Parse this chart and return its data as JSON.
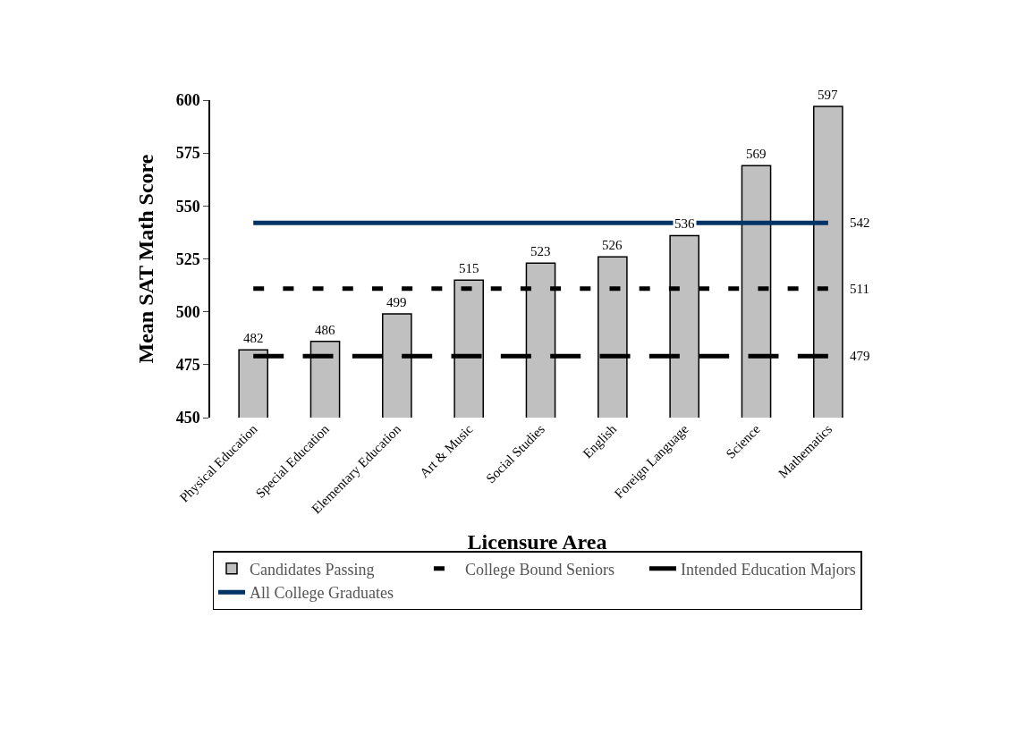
{
  "chart_data": {
    "type": "bar",
    "xlabel": "Licensure Area",
    "ylabel": "Mean SAT Math Score",
    "categories": [
      "Physical Education",
      "Special Education",
      "Elementary Education",
      "Art & Music",
      "Social Studies",
      "English",
      "Foreign Language",
      "Science",
      "Mathematics"
    ],
    "series": [
      {
        "name": "Candidates Passing",
        "color": "#c0c0c0",
        "values": [
          482,
          486,
          499,
          515,
          523,
          526,
          536,
          569,
          597
        ],
        "data_labels": true
      },
      {
        "name": "College Bound Seniors",
        "type": "line",
        "color": "#000000",
        "line_style": "dashed",
        "values": [
          511,
          511,
          511,
          511,
          511,
          511,
          511,
          511,
          511
        ],
        "value_labels": [
          null,
          null,
          null,
          null,
          null,
          null,
          null,
          null,
          "511"
        ]
      },
      {
        "name": "Intended Education Majors",
        "type": "line",
        "color": "#000000",
        "line_style": "dashed",
        "values": [
          479,
          479,
          479,
          479,
          479,
          479,
          479,
          479,
          479
        ],
        "value_labels": [
          null,
          null,
          null,
          null,
          null,
          null,
          null,
          null,
          "479"
        ]
      },
      {
        "name": "All College Graduates",
        "type": "line",
        "color": "#003366",
        "line_style": "solid",
        "values": [
          542,
          542,
          542,
          542,
          542,
          542,
          542,
          542,
          542
        ],
        "value_labels": [
          null,
          null,
          null,
          null,
          null,
          null,
          null,
          null,
          "542"
        ]
      }
    ],
    "ylim": [
      450,
      600
    ],
    "yticks": [
      450,
      475,
      500,
      525,
      550,
      575,
      600
    ],
    "grid": false,
    "legend": "bottom",
    "marker": "none"
  }
}
